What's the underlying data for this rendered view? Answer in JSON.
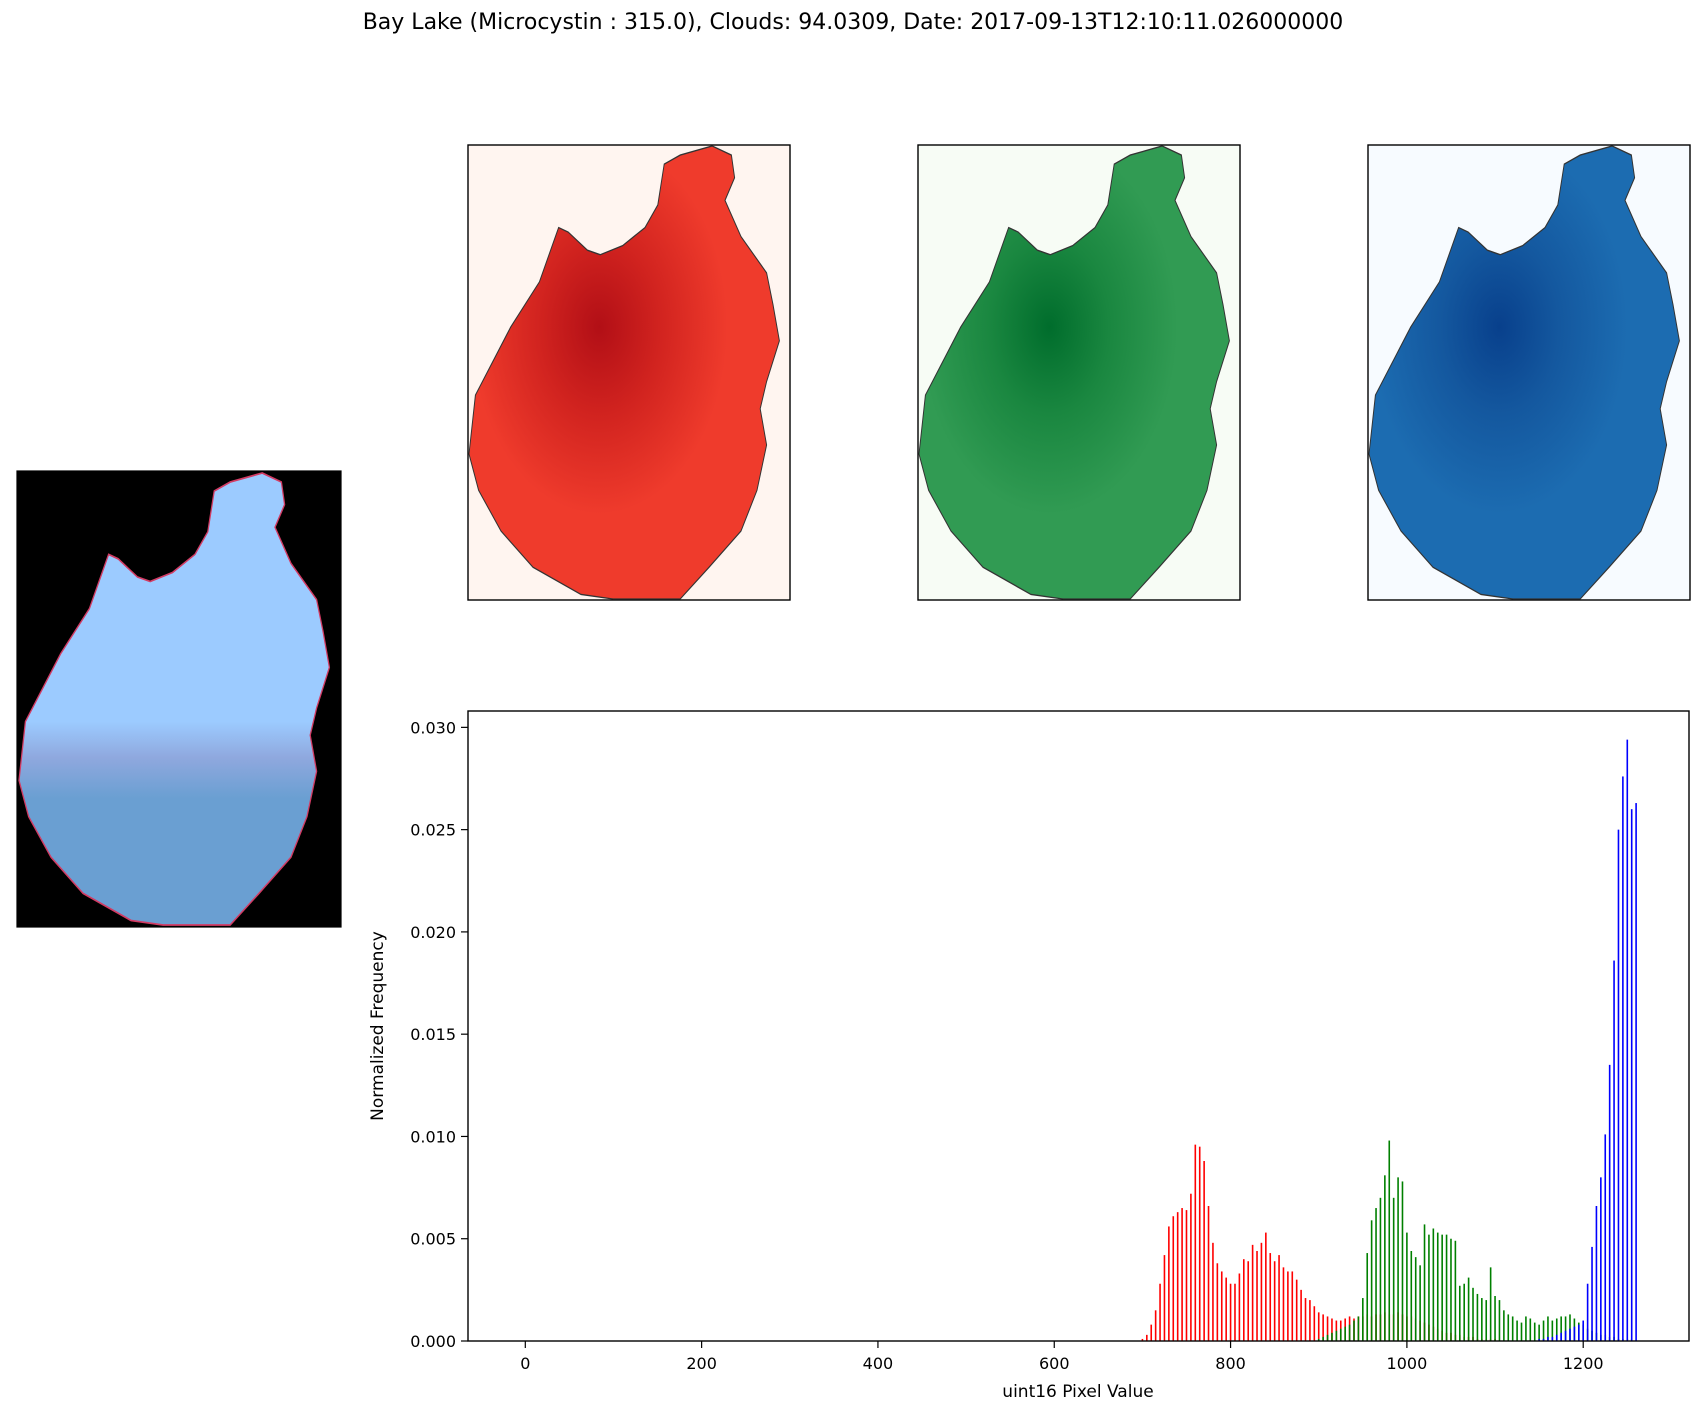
{
  "title": "Bay Lake (Microcystin : 315.0), Clouds: 94.0309, Date: 2017-09-13T12:10:11.026000000",
  "panels": {
    "rgb": {
      "background": "#000000",
      "water_light": "#9ccbff",
      "water_dark": "#6a9fd2",
      "edge": "#d23c64"
    },
    "red": {
      "background": "#fff5f0",
      "fill": "#ef3b2c",
      "dark": "#b20f16"
    },
    "green": {
      "background": "#f7fcf5",
      "fill": "#319b53",
      "dark": "#006d2c"
    },
    "blue": {
      "background": "#f7fbff",
      "fill": "#1c6cb1",
      "dark": "#08408c"
    }
  },
  "chart_data": {
    "type": "bar",
    "xlabel": "uint16 Pixel Value",
    "ylabel": "Normalized Frequency",
    "xlim": [
      -65,
      1320
    ],
    "ylim": [
      0,
      0.0308
    ],
    "xticks": [
      0,
      200,
      400,
      600,
      800,
      1000,
      1200
    ],
    "yticks": [
      "0.000",
      "0.005",
      "0.010",
      "0.015",
      "0.020",
      "0.025",
      "0.030"
    ],
    "bin_width": 5,
    "series": [
      {
        "color": "#ff0000",
        "x": [
          700,
          705,
          710,
          715,
          720,
          725,
          730,
          735,
          740,
          745,
          750,
          755,
          760,
          765,
          770,
          775,
          780,
          785,
          790,
          795,
          800,
          805,
          810,
          815,
          820,
          825,
          830,
          835,
          840,
          845,
          850,
          855,
          860,
          865,
          870,
          875,
          880,
          885,
          890,
          895,
          900,
          905,
          910,
          915,
          920,
          925,
          930,
          935,
          940,
          945,
          950,
          955,
          960,
          965,
          970,
          975,
          980,
          985,
          990,
          995,
          1000,
          1005,
          1010,
          1015,
          1020,
          1025,
          1030,
          1035,
          1040,
          1045,
          1050,
          1055,
          1060,
          1065,
          1070,
          1075,
          1080,
          1085,
          1090,
          1095,
          1100
        ],
        "values": [
          0.0001,
          0.0003,
          0.0008,
          0.0015,
          0.0028,
          0.0042,
          0.0056,
          0.0061,
          0.0063,
          0.0065,
          0.0064,
          0.0072,
          0.0096,
          0.0095,
          0.0088,
          0.0066,
          0.0048,
          0.0038,
          0.0034,
          0.0031,
          0.0028,
          0.0028,
          0.0033,
          0.004,
          0.0039,
          0.0047,
          0.0044,
          0.0048,
          0.0053,
          0.0043,
          0.0039,
          0.0042,
          0.0036,
          0.0034,
          0.0034,
          0.003,
          0.0025,
          0.0021,
          0.002,
          0.0017,
          0.0014,
          0.0013,
          0.0012,
          0.0011,
          0.001,
          0.001,
          0.0011,
          0.0012,
          0.0011,
          0.0012,
          0.0012,
          0.0013,
          0.0012,
          0.0013,
          0.0013,
          0.0014,
          0.0013,
          0.0013,
          0.0014,
          0.0013,
          0.0012,
          0.0012,
          0.0011,
          0.001,
          0.0009,
          0.0008,
          0.0007,
          0.0006,
          0.0005,
          0.0004,
          0.0004,
          0.0003,
          0.0003,
          0.0002,
          0.0002,
          0.0002,
          0.0001,
          0.0001,
          0.0001,
          0.0001,
          0.0001
        ]
      },
      {
        "color": "#008000",
        "x": [
          900,
          905,
          910,
          915,
          920,
          925,
          930,
          935,
          940,
          945,
          950,
          955,
          960,
          965,
          970,
          975,
          980,
          985,
          990,
          995,
          1000,
          1005,
          1010,
          1015,
          1020,
          1025,
          1030,
          1035,
          1040,
          1045,
          1050,
          1055,
          1060,
          1065,
          1070,
          1075,
          1080,
          1085,
          1090,
          1095,
          1100,
          1105,
          1110,
          1115,
          1120,
          1125,
          1130,
          1135,
          1140,
          1145,
          1150,
          1155,
          1160,
          1165,
          1170,
          1175,
          1180,
          1185,
          1190,
          1195,
          1200,
          1205,
          1210,
          1215,
          1220,
          1225,
          1230,
          1235,
          1240,
          1245,
          1250,
          1255
        ],
        "values": [
          0.0001,
          0.0002,
          0.0003,
          0.0004,
          0.0005,
          0.0006,
          0.0007,
          0.0008,
          0.001,
          0.0012,
          0.0021,
          0.0043,
          0.0059,
          0.0065,
          0.007,
          0.0081,
          0.0098,
          0.007,
          0.008,
          0.0078,
          0.0053,
          0.0044,
          0.0041,
          0.0037,
          0.0057,
          0.0052,
          0.0055,
          0.0053,
          0.0052,
          0.0052,
          0.005,
          0.0049,
          0.0027,
          0.0028,
          0.0031,
          0.0026,
          0.0023,
          0.0021,
          0.002,
          0.0036,
          0.0022,
          0.002,
          0.0015,
          0.0013,
          0.0012,
          0.001,
          0.0009,
          0.0012,
          0.0011,
          0.0009,
          0.0008,
          0.001,
          0.0012,
          0.001,
          0.0011,
          0.0012,
          0.0012,
          0.0013,
          0.0011,
          0.0009,
          0.0008,
          0.0006,
          0.0005,
          0.0004,
          0.0003,
          0.0003,
          0.0002,
          0.0002,
          0.0001,
          0.0001,
          0.0001,
          0.0001
        ]
      },
      {
        "color": "#0000ff",
        "x": [
          1150,
          1155,
          1160,
          1165,
          1170,
          1175,
          1180,
          1185,
          1190,
          1195,
          1200,
          1205,
          1210,
          1215,
          1220,
          1225,
          1230,
          1235,
          1240,
          1245,
          1250,
          1255,
          1260
        ],
        "values": [
          0.0001,
          0.0001,
          0.0002,
          0.0002,
          0.0003,
          0.0004,
          0.0005,
          0.0006,
          0.0007,
          0.0008,
          0.001,
          0.0028,
          0.0046,
          0.0066,
          0.008,
          0.0101,
          0.0135,
          0.0186,
          0.025,
          0.0276,
          0.0294,
          0.026,
          0.0263
        ]
      }
    ]
  }
}
